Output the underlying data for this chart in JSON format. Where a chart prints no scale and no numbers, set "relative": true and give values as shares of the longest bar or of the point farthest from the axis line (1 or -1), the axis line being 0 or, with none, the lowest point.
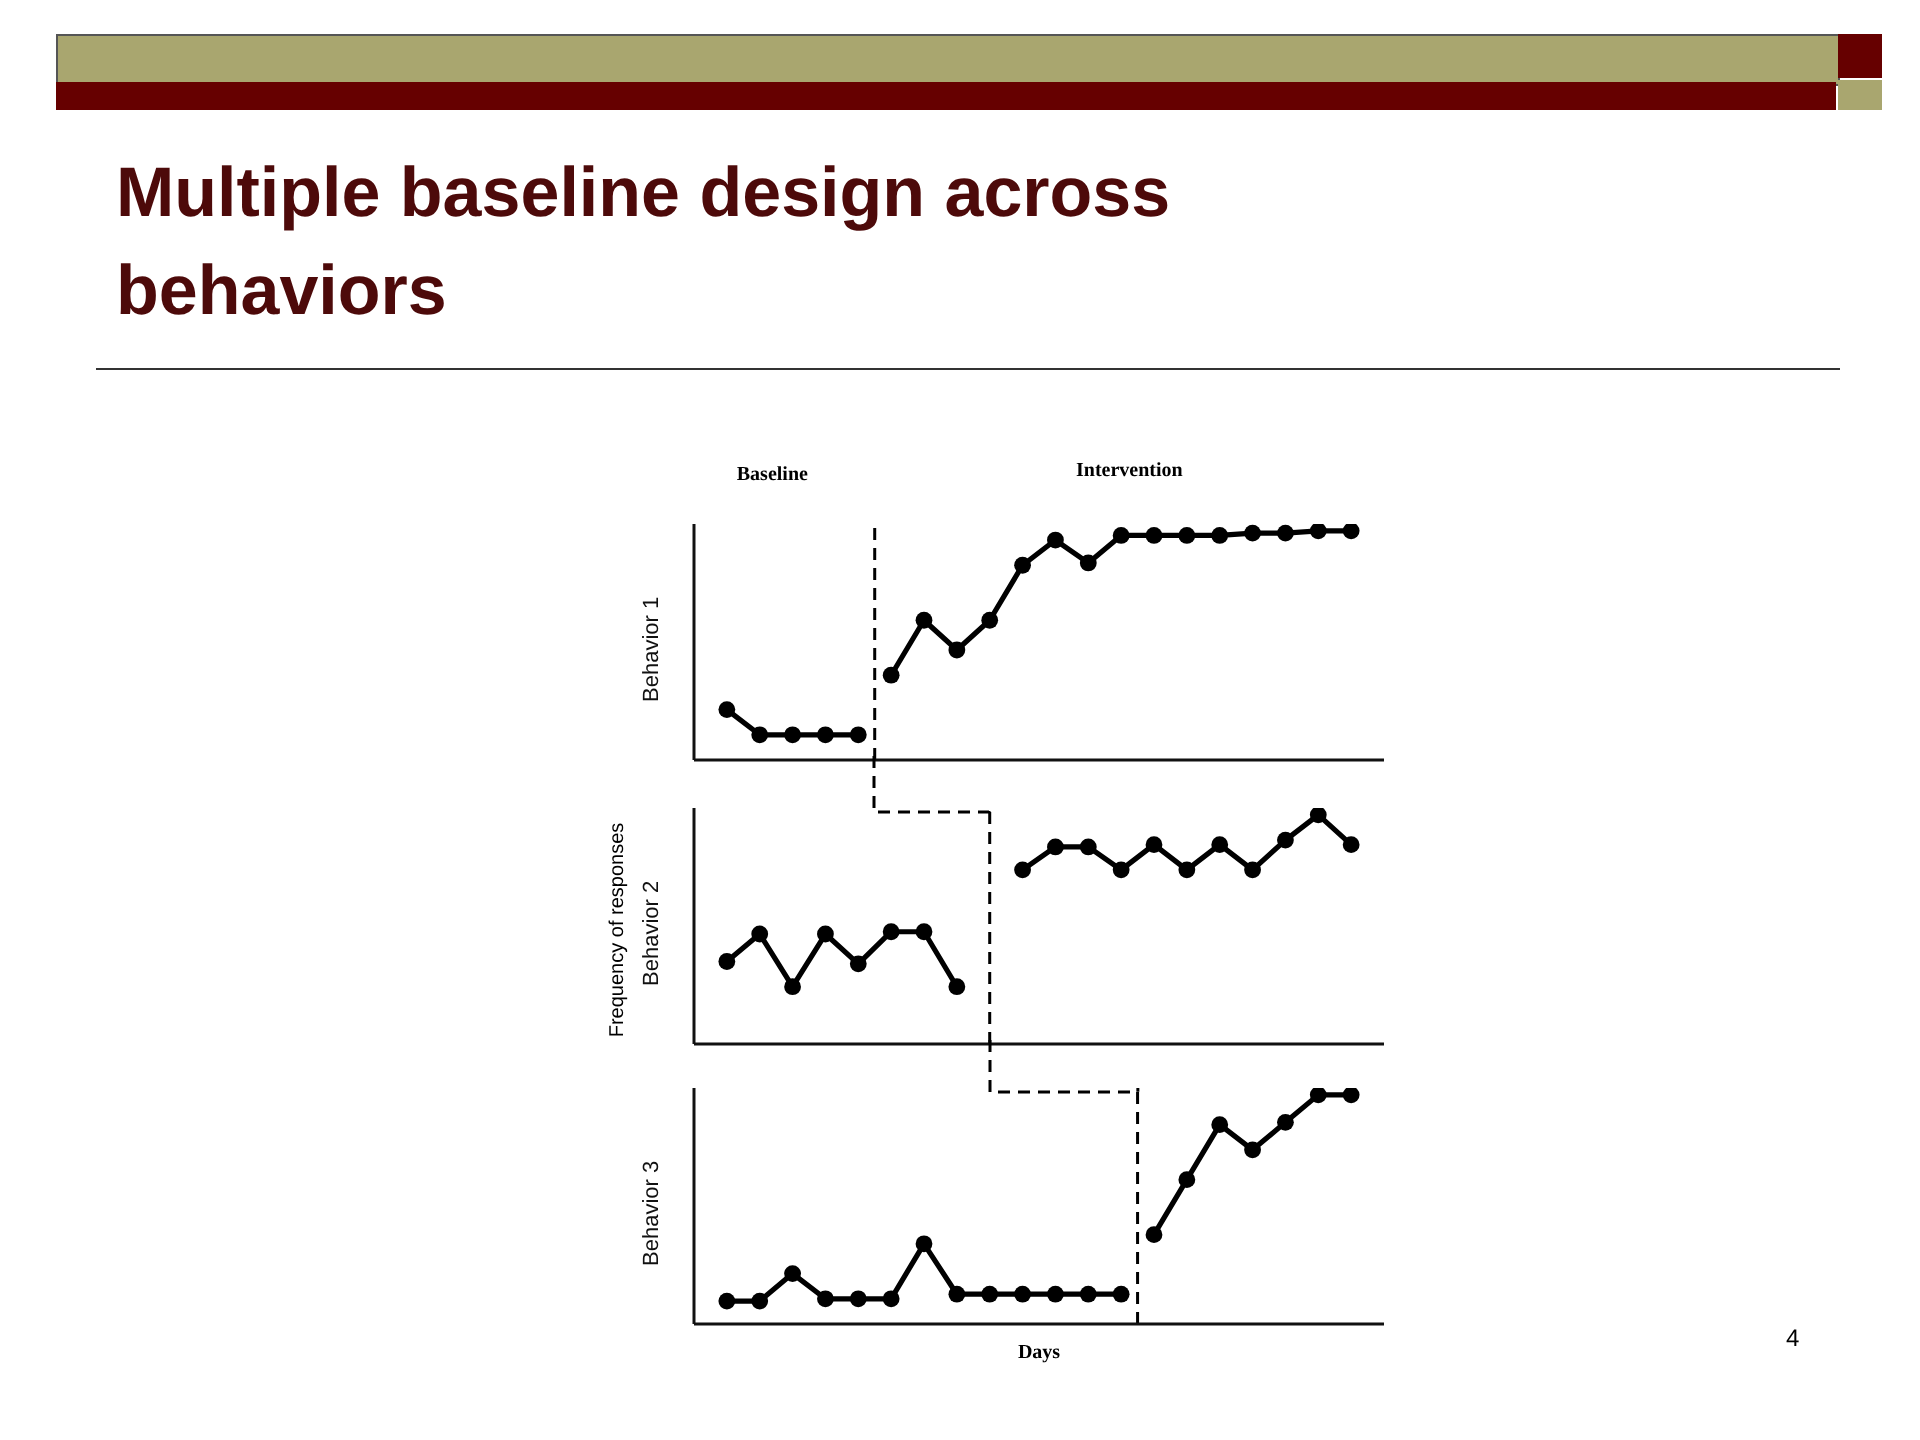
{
  "chart_data": [
    {
      "type": "line",
      "title": "Multiple baseline design across behaviors",
      "ylabel": "Behavior 1",
      "annotations": [
        "Baseline",
        "Intervention"
      ],
      "categories": [
        null,
        null,
        null,
        null,
        null,
        null,
        null,
        null,
        null,
        null,
        null,
        null,
        null,
        null,
        null,
        null,
        null,
        null,
        null,
        null
      ],
      "relative": true,
      "marker": "circle",
      "series": [
        {
          "color": "#000000",
          "values": [
            0.22,
            0.11,
            0.11,
            0.11,
            0.11,
            null,
            null,
            null,
            null,
            null,
            null,
            null,
            null,
            null,
            null,
            null,
            null,
            null,
            null,
            null
          ]
        },
        {
          "color": "#000000",
          "values": [
            null,
            null,
            null,
            null,
            null,
            0.37,
            0.61,
            0.48,
            0.61,
            0.85,
            0.96,
            0.86,
            0.98,
            0.98,
            0.98,
            0.98,
            0.99,
            0.99,
            1,
            1
          ]
        }
      ]
    },
    {
      "type": "line",
      "ylabel": "Behavior 2",
      "annotations": [
        "Frequency of responses"
      ],
      "categories": [
        null,
        null,
        null,
        null,
        null,
        null,
        null,
        null,
        null,
        null,
        null,
        null,
        null,
        null,
        null,
        null,
        null,
        null,
        null,
        null
      ],
      "relative": true,
      "marker": "circle",
      "series": [
        {
          "color": "#000000",
          "values": [
            0.36,
            0.48,
            0.25,
            0.48,
            0.35,
            0.49,
            0.49,
            0.25,
            null,
            null,
            null,
            null,
            null,
            null,
            null,
            null,
            null,
            null,
            null,
            null
          ]
        },
        {
          "color": "#000000",
          "values": [
            null,
            null,
            null,
            null,
            null,
            null,
            null,
            null,
            null,
            0.76,
            0.86,
            0.86,
            0.76,
            0.87,
            0.76,
            0.87,
            0.76,
            0.89,
            1,
            0.87
          ]
        }
      ]
    },
    {
      "type": "line",
      "ylabel": "Behavior 3",
      "xlabel": "Days",
      "annotations": [
        "4"
      ],
      "categories": [
        null,
        null,
        null,
        null,
        null,
        null,
        null,
        null,
        null,
        null,
        null,
        null,
        null,
        null,
        null,
        null,
        null,
        null,
        null,
        null
      ],
      "relative": true,
      "marker": "circle",
      "series": [
        {
          "color": "#000000",
          "values": [
            0.1,
            0.1,
            0.22,
            0.11,
            0.11,
            0.11,
            0.35,
            0.13,
            0.13,
            0.13,
            0.13,
            0.13,
            0.13,
            null,
            null,
            null,
            null,
            null,
            null,
            null
          ]
        },
        {
          "color": "#000000",
          "values": [
            null,
            null,
            null,
            null,
            null,
            null,
            null,
            null,
            null,
            null,
            null,
            null,
            null,
            0.39,
            0.63,
            0.87,
            0.76,
            0.88,
            1,
            1
          ]
        }
      ]
    }
  ]
}
